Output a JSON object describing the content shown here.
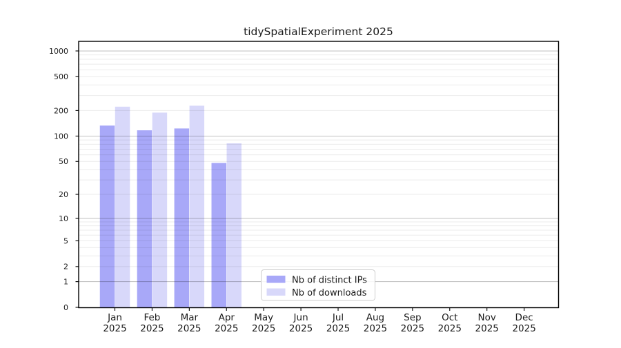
{
  "chart_data": {
    "type": "bar",
    "title": "tidySpatialExperiment 2025",
    "x": {
      "categories": [
        "Jan",
        "Feb",
        "Mar",
        "Apr",
        "May",
        "Jun",
        "Jul",
        "Aug",
        "Sep",
        "Oct",
        "Nov",
        "Dec"
      ],
      "year_label": "2025"
    },
    "series": [
      {
        "name": "Nb of distinct IPs",
        "color": "#a8a8f8",
        "values": [
          133,
          117,
          123,
          48,
          0,
          0,
          0,
          0,
          0,
          0,
          0,
          0
        ]
      },
      {
        "name": "Nb of downloads",
        "color": "#d8d8fa",
        "values": [
          222,
          189,
          228,
          82,
          0,
          0,
          0,
          0,
          0,
          0,
          0,
          0
        ]
      }
    ],
    "y_axis": {
      "scale": "log1p",
      "tick_values": [
        0,
        1,
        2,
        5,
        10,
        20,
        50,
        100,
        200,
        500,
        1000
      ],
      "range": [
        0,
        1300
      ]
    },
    "grid": {
      "horizontal": true,
      "major_at": [
        1,
        10,
        100,
        1000
      ],
      "minor_decades": [
        1,
        10,
        100
      ]
    },
    "legend": {
      "position": "lower-center"
    }
  }
}
